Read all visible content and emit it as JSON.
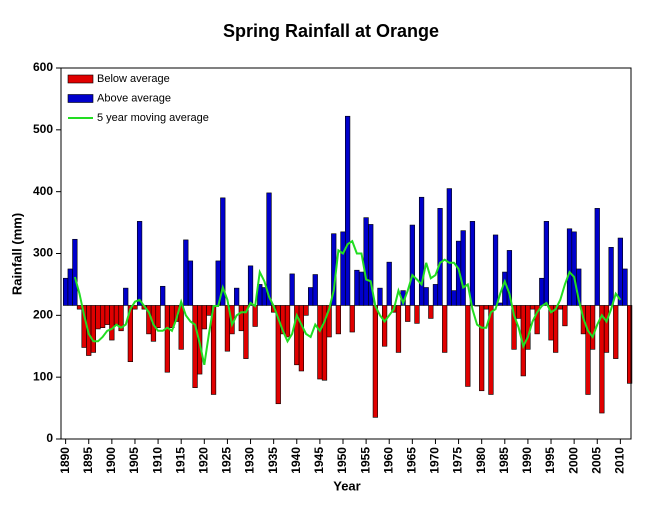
{
  "chart_data": {
    "type": "bar",
    "title": "Spring Rainfall at Orange",
    "xlabel": "Year",
    "ylabel": "Rainfall (mm)",
    "baseline": 216,
    "x": [
      1890,
      1891,
      1892,
      1893,
      1894,
      1895,
      1896,
      1897,
      1898,
      1899,
      1900,
      1901,
      1902,
      1903,
      1904,
      1905,
      1906,
      1907,
      1908,
      1909,
      1910,
      1911,
      1912,
      1913,
      1914,
      1915,
      1916,
      1917,
      1918,
      1919,
      1920,
      1921,
      1922,
      1923,
      1924,
      1925,
      1926,
      1927,
      1928,
      1929,
      1930,
      1931,
      1932,
      1933,
      1934,
      1935,
      1936,
      1937,
      1938,
      1939,
      1940,
      1941,
      1942,
      1943,
      1944,
      1945,
      1946,
      1947,
      1948,
      1949,
      1950,
      1951,
      1952,
      1953,
      1954,
      1955,
      1956,
      1957,
      1958,
      1959,
      1960,
      1961,
      1962,
      1963,
      1964,
      1965,
      1966,
      1967,
      1968,
      1969,
      1970,
      1971,
      1972,
      1973,
      1974,
      1975,
      1976,
      1977,
      1978,
      1979,
      1980,
      1981,
      1982,
      1983,
      1984,
      1985,
      1986,
      1987,
      1988,
      1989,
      1990,
      1991,
      1992,
      1993,
      1994,
      1995,
      1996,
      1997,
      1998,
      1999,
      2000,
      2001,
      2002,
      2003,
      2004,
      2005,
      2006,
      2007,
      2008,
      2009,
      2010,
      2011,
      2012
    ],
    "values": [
      260,
      275,
      323,
      210,
      148,
      135,
      140,
      178,
      180,
      185,
      160,
      185,
      175,
      244,
      125,
      210,
      352,
      210,
      170,
      158,
      180,
      247,
      108,
      180,
      190,
      145,
      322,
      288,
      83,
      105,
      178,
      200,
      72,
      288,
      390,
      142,
      170,
      244,
      175,
      130,
      280,
      182,
      250,
      245,
      398,
      205,
      57,
      170,
      165,
      267,
      120,
      110,
      200,
      245,
      266,
      97,
      95,
      165,
      332,
      170,
      335,
      522,
      173,
      273,
      270,
      358,
      347,
      35,
      244,
      150,
      286,
      205,
      140,
      240,
      190,
      346,
      187,
      391,
      245,
      195,
      250,
      373,
      140,
      405,
      240,
      320,
      337,
      85,
      352,
      215,
      78,
      210,
      72,
      330,
      220,
      270,
      305,
      145,
      195,
      102,
      145,
      210,
      170,
      260,
      352,
      160,
      140,
      210,
      183,
      340,
      335,
      275,
      170,
      72,
      145,
      373,
      42,
      140,
      310,
      130,
      325,
      275,
      90
    ],
    "series": [
      {
        "name": "Below average",
        "color": "#e00000"
      },
      {
        "name": "Above average",
        "color": "#0000cc"
      },
      {
        "name": "5 year moving average",
        "color": "#22dd22",
        "values": [
          null,
          null,
          262,
          235,
          200,
          170,
          158,
          158,
          165,
          175,
          178,
          185,
          180,
          185,
          210,
          222,
          225,
          215,
          205,
          185,
          175,
          175,
          180,
          175,
          195,
          222,
          200,
          190,
          185,
          155,
          120,
          170,
          215,
          215,
          245,
          225,
          185,
          200,
          205,
          205,
          220,
          215,
          270,
          255,
          230,
          215,
          195,
          175,
          158,
          170,
          200,
          185,
          170,
          165,
          185,
          175,
          190,
          210,
          240,
          305,
          300,
          315,
          320,
          300,
          300,
          258,
          255,
          215,
          200,
          190,
          200,
          210,
          240,
          220,
          240,
          265,
          258,
          250,
          285,
          260,
          265,
          285,
          290,
          285,
          285,
          275,
          245,
          250,
          210,
          185,
          180,
          180,
          205,
          210,
          235,
          255,
          235,
          200,
          180,
          150,
          165,
          190,
          205,
          215,
          220,
          205,
          210,
          225,
          250,
          270,
          262,
          225,
          195,
          175,
          165,
          185,
          200,
          190,
          210,
          235,
          225,
          null,
          null
        ]
      }
    ],
    "xlim": [
      1889,
      2012.3
    ],
    "xticks": [
      1890,
      1895,
      1900,
      1905,
      1910,
      1915,
      1920,
      1925,
      1930,
      1935,
      1940,
      1945,
      1950,
      1955,
      1960,
      1965,
      1970,
      1975,
      1980,
      1985,
      1990,
      1995,
      2000,
      2005,
      2010
    ],
    "ylim": [
      0,
      600
    ],
    "yticks": [
      0,
      100,
      200,
      300,
      400,
      500,
      600
    ],
    "legend": "top-left",
    "grid": false
  }
}
